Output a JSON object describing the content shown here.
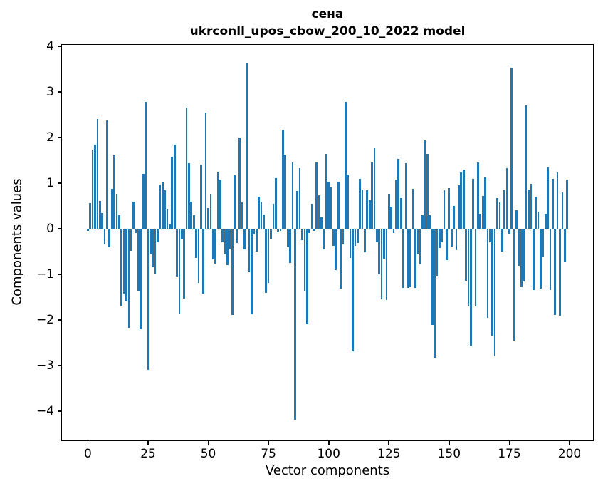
{
  "title": {
    "line1": "сена",
    "line2": "ukrconll_upos_cbow_200_10_2022 model"
  },
  "chart_data": {
    "type": "bar",
    "title": "сена",
    "subtitle": "ukrconll_upos_cbow_200_10_2022 model",
    "xlabel": "Vector components",
    "ylabel": "Components values",
    "bar_color": "#1f77b4",
    "grid": false,
    "legend": null,
    "n_components": 200,
    "x_ticks": [
      0,
      25,
      50,
      75,
      100,
      125,
      150,
      175,
      200
    ],
    "y_ticks": [
      4,
      3,
      2,
      1,
      0,
      -1,
      -2,
      -3,
      -4
    ],
    "xlim": [
      -10.75,
      209.75
    ],
    "ylim": [
      -4.64,
      4.03
    ],
    "values": [
      -0.05,
      0.56,
      1.73,
      1.84,
      2.4,
      0.61,
      0.35,
      -0.35,
      2.37,
      -0.4,
      0.88,
      1.63,
      0.76,
      0.3,
      -1.7,
      -1.44,
      -1.6,
      -2.17,
      -0.48,
      0.6,
      -0.1,
      -1.36,
      -2.2,
      1.21,
      2.78,
      -3.1,
      -0.57,
      -0.85,
      -0.98,
      -0.3,
      0.97,
      1.01,
      0.84,
      0.43,
      0.1,
      1.58,
      1.85,
      -1.05,
      -1.86,
      -0.24,
      -1.53,
      2.65,
      1.43,
      0.6,
      0.3,
      -0.64,
      -1.19,
      1.4,
      -1.42,
      2.55,
      0.45,
      0.76,
      -0.67,
      -0.76,
      1.25,
      1.08,
      -0.3,
      -0.56,
      -0.79,
      -0.45,
      -1.89,
      1.17,
      -0.32,
      2.0,
      0.6,
      -0.45,
      3.64,
      -0.95,
      -1.87,
      -0.12,
      -0.5,
      0.7,
      0.6,
      0.31,
      -1.4,
      -1.18,
      -0.24,
      0.55,
      1.11,
      -0.08,
      -0.05,
      2.17,
      1.62,
      -0.4,
      -0.75,
      1.45,
      -4.18,
      0.82,
      1.32,
      -0.25,
      -1.36,
      -2.1,
      -0.1,
      0.54,
      -0.05,
      1.45,
      0.73,
      0.25,
      -0.45,
      1.64,
      1.03,
      0.9,
      -0.38,
      -0.9,
      1.03,
      -1.31,
      -0.35,
      2.78,
      1.19,
      -0.64,
      -2.68,
      -0.38,
      -0.31,
      1.09,
      0.86,
      -0.51,
      0.84,
      0.62,
      1.45,
      1.76,
      -0.3,
      -1.0,
      -1.55,
      -0.65,
      -1.56,
      0.77,
      0.48,
      -0.1,
      1.07,
      1.53,
      0.67,
      -1.3,
      1.43,
      -1.29,
      -1.28,
      0.88,
      -1.3,
      -0.56,
      -0.78,
      0.3,
      1.93,
      1.64,
      0.3,
      -2.11,
      -2.84,
      -1.03,
      -0.43,
      -0.3,
      0.85,
      -0.69,
      0.89,
      -0.39,
      0.5,
      -0.47,
      0.95,
      1.24,
      1.29,
      -1.14,
      -1.69,
      -2.57,
      1.1,
      -1.7,
      1.45,
      0.33,
      0.72,
      1.13,
      -1.96,
      -0.3,
      -2.35,
      -2.8,
      0.67,
      0.6,
      -0.5,
      0.85,
      1.33,
      -0.11,
      3.53,
      -2.45,
      0.41,
      -0.81,
      -1.28,
      -1.16,
      2.7,
      0.86,
      0.98,
      -1.35,
      0.7,
      0.37,
      -1.31,
      -0.61,
      0.33,
      1.35,
      -1.35,
      1.1,
      -1.89,
      1.24,
      -1.91,
      0.8,
      -0.74,
      1.07
    ]
  }
}
